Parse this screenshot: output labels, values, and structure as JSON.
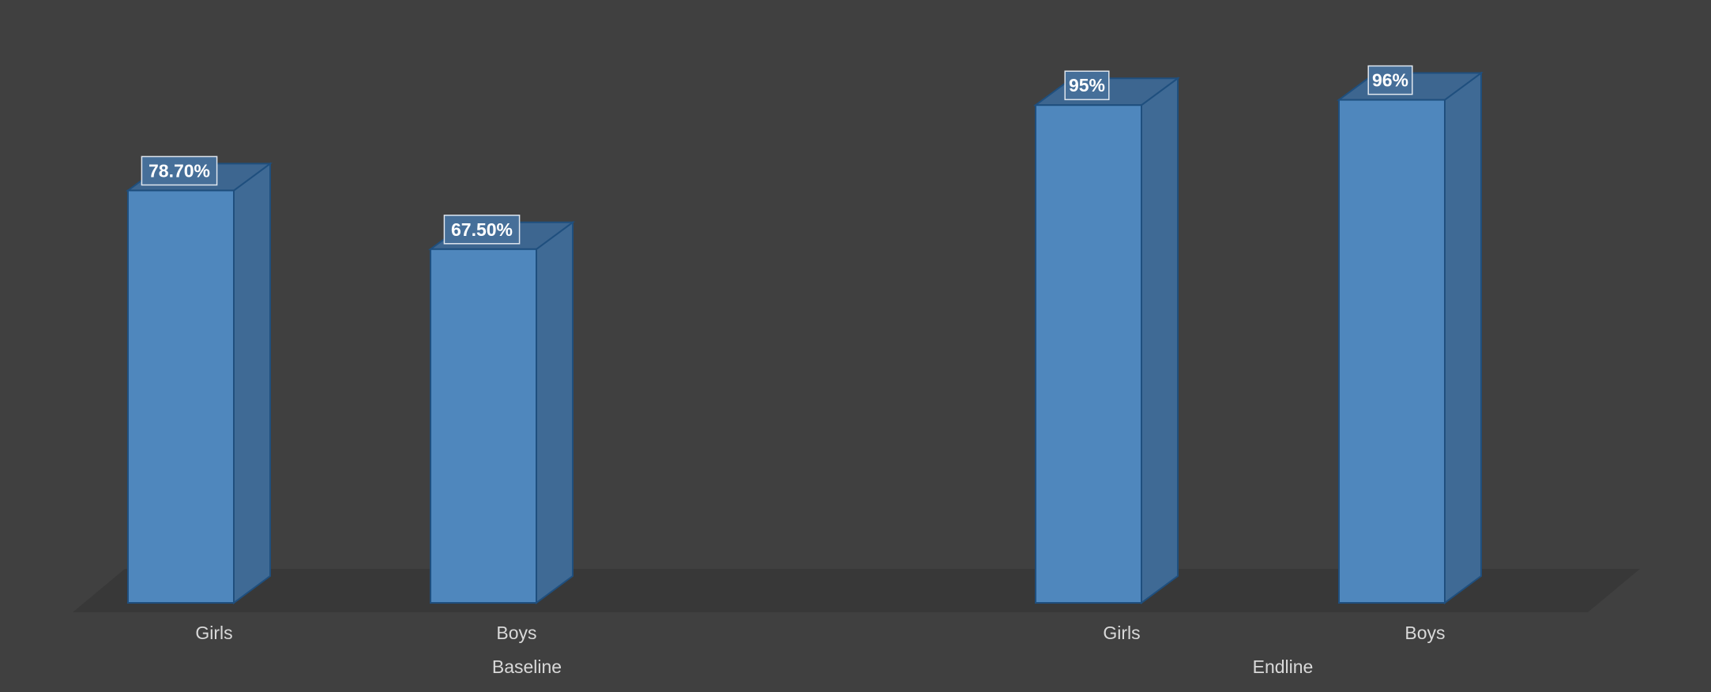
{
  "chart_data": {
    "type": "bar",
    "style": "3d-column",
    "groups": [
      {
        "label": "Baseline",
        "bars": [
          {
            "category": "Girls",
            "value": 78.7,
            "display": "78.70%"
          },
          {
            "category": "Boys",
            "value": 67.5,
            "display": "67.50%"
          }
        ]
      },
      {
        "label": "Endline",
        "bars": [
          {
            "category": "Girls",
            "value": 95,
            "display": "95%"
          },
          {
            "category": "Boys",
            "value": 96,
            "display": "96%"
          }
        ]
      }
    ],
    "ylim": [
      0,
      100
    ],
    "grid": false,
    "legend": "none"
  },
  "colors": {
    "background": "#404040",
    "floor": "#383838",
    "bar_front": "#4f87bd",
    "bar_side": "#3f6a95",
    "bar_top": "#3d6690",
    "bar_edge": "#1f4f7e",
    "label_box_fill": "#466f99",
    "label_box_border": "#dfe6ee"
  }
}
